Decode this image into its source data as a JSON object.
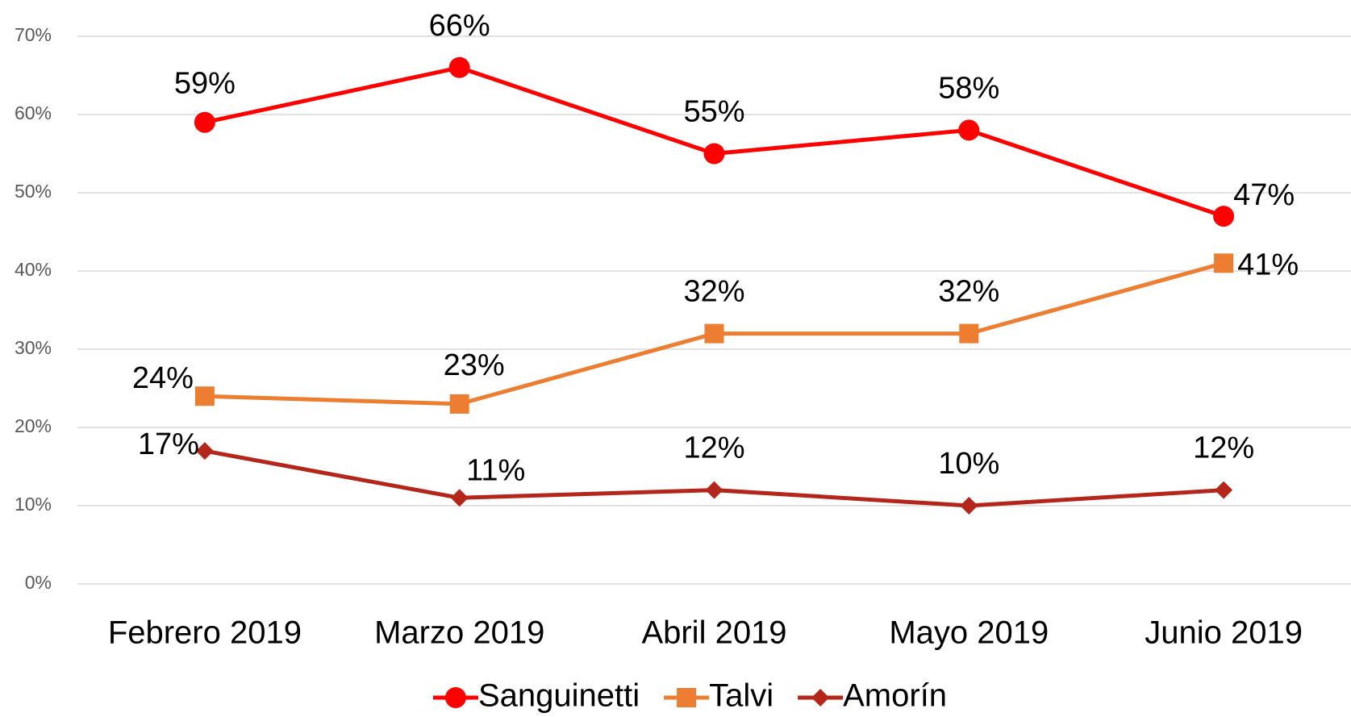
{
  "chart_data": {
    "type": "line",
    "categories": [
      "Febrero 2019",
      "Marzo 2019",
      "Abril 2019",
      "Mayo 2019",
      "Junio 2019"
    ],
    "series": [
      {
        "name": "Sanguinetti",
        "color": "#ff0000",
        "marker": "circle",
        "values": [
          59,
          66,
          55,
          58,
          47
        ],
        "value_labels": [
          "59%",
          "66%",
          "55%",
          "58%",
          "47%"
        ]
      },
      {
        "name": "Talvi",
        "color": "#ed7d31",
        "marker": "square",
        "values": [
          24,
          23,
          32,
          32,
          41
        ],
        "value_labels": [
          "24%",
          "23%",
          "32%",
          "32%",
          "41%"
        ]
      },
      {
        "name": "Amorín",
        "color": "#b5261a",
        "marker": "diamond",
        "values": [
          17,
          11,
          12,
          10,
          12
        ],
        "value_labels": [
          "17%",
          "11%",
          "12%",
          "10%",
          "12%"
        ]
      }
    ],
    "ylim": [
      0,
      70
    ],
    "yticks": [
      {
        "value": 0,
        "label": "0%"
      },
      {
        "value": 10,
        "label": "10%"
      },
      {
        "value": 20,
        "label": "20%"
      },
      {
        "value": 30,
        "label": "30%"
      },
      {
        "value": 40,
        "label": "40%"
      },
      {
        "value": 50,
        "label": "50%"
      },
      {
        "value": 60,
        "label": "60%"
      },
      {
        "value": 70,
        "label": "70%"
      }
    ],
    "grid": true,
    "legend": "bottom"
  }
}
